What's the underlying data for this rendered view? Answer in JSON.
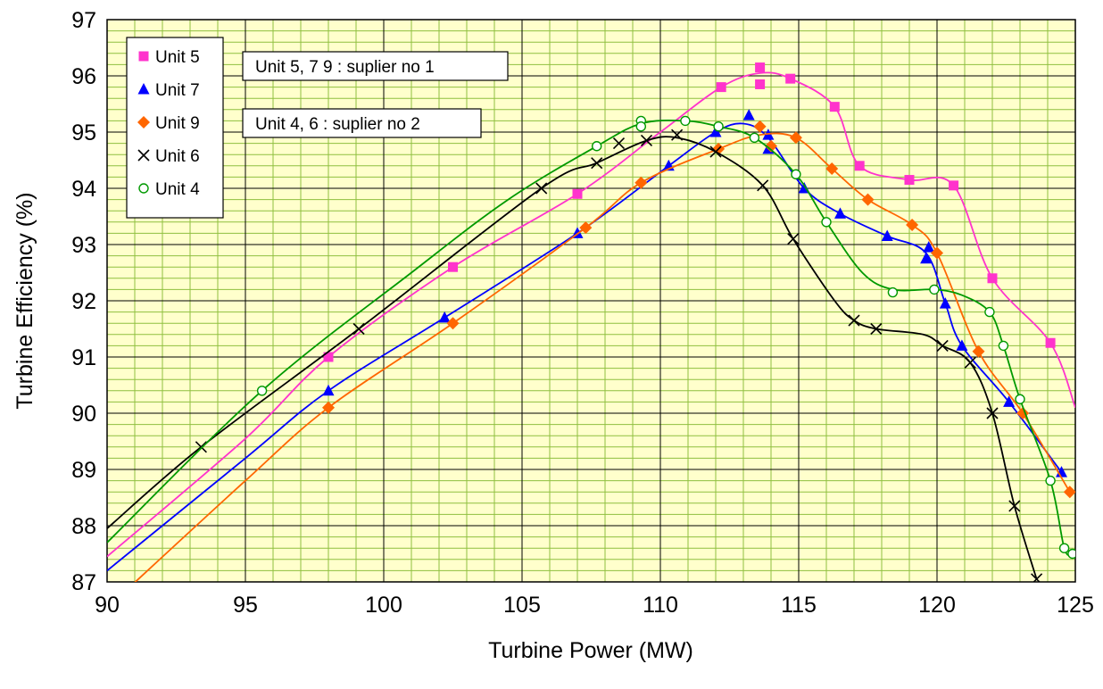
{
  "chart_data": {
    "type": "line",
    "xlabel": "Turbine Power (MW)",
    "ylabel": "Turbine Efficiency (%)",
    "xlim": [
      90,
      125
    ],
    "ylim": [
      87,
      97
    ],
    "xticks": [
      "90",
      "95",
      "100",
      "105",
      "110",
      "115",
      "120",
      "125"
    ],
    "yticks": [
      "87",
      "88",
      "89",
      "90",
      "91",
      "92",
      "93",
      "94",
      "95",
      "96",
      "97"
    ],
    "grid": true,
    "minor_grid": true,
    "plot_background": "#ffffcc",
    "minor_grid_color": "#8fbf3f",
    "major_grid_color": "#000000",
    "legend_position": "top-left",
    "annotations": [
      "Unit 5, 7 9 : suplier no 1",
      "Unit 4, 6 : suplier no 2"
    ],
    "series": [
      {
        "name": "Unit 5",
        "color": "#ff33cc",
        "marker": "square",
        "points": [
          [
            98.0,
            91.0
          ],
          [
            102.5,
            92.6
          ],
          [
            107.0,
            93.9
          ],
          [
            112.2,
            95.8
          ],
          [
            113.6,
            96.15
          ],
          [
            113.6,
            95.85
          ],
          [
            114.7,
            95.95
          ],
          [
            116.3,
            95.45
          ],
          [
            117.2,
            94.4
          ],
          [
            119.0,
            94.15
          ],
          [
            120.6,
            94.05
          ],
          [
            122.0,
            92.4
          ],
          [
            124.1,
            91.25
          ]
        ],
        "curve": [
          [
            90.0,
            87.45
          ],
          [
            95.0,
            89.55
          ],
          [
            98.0,
            91.0
          ],
          [
            102.5,
            92.6
          ],
          [
            107.0,
            93.9
          ],
          [
            110.0,
            95.0
          ],
          [
            112.2,
            95.8
          ],
          [
            113.6,
            96.05
          ],
          [
            114.7,
            95.95
          ],
          [
            116.3,
            95.45
          ],
          [
            117.2,
            94.4
          ],
          [
            119.0,
            94.15
          ],
          [
            120.6,
            94.05
          ],
          [
            122.0,
            92.4
          ],
          [
            124.1,
            91.25
          ],
          [
            125.0,
            90.1
          ]
        ]
      },
      {
        "name": "Unit 7",
        "color": "#0000ff",
        "marker": "triangle",
        "points": [
          [
            98.0,
            90.4
          ],
          [
            102.2,
            91.7
          ],
          [
            107.0,
            93.2
          ],
          [
            110.3,
            94.4
          ],
          [
            112.0,
            95.0
          ],
          [
            113.2,
            95.3
          ],
          [
            113.9,
            94.95
          ],
          [
            113.9,
            94.7
          ],
          [
            115.2,
            94.0
          ],
          [
            116.5,
            93.55
          ],
          [
            118.2,
            93.15
          ],
          [
            119.6,
            92.75
          ],
          [
            119.7,
            92.95
          ],
          [
            120.3,
            91.95
          ],
          [
            120.9,
            91.2
          ],
          [
            122.6,
            90.2
          ],
          [
            124.5,
            88.95
          ]
        ],
        "curve": [
          [
            90.0,
            87.2
          ],
          [
            95.0,
            89.2
          ],
          [
            98.0,
            90.4
          ],
          [
            102.2,
            91.7
          ],
          [
            107.0,
            93.2
          ],
          [
            110.3,
            94.4
          ],
          [
            112.0,
            95.0
          ],
          [
            113.0,
            95.15
          ],
          [
            113.9,
            94.9
          ],
          [
            115.2,
            94.0
          ],
          [
            116.5,
            93.55
          ],
          [
            118.2,
            93.15
          ],
          [
            119.6,
            92.85
          ],
          [
            120.3,
            91.95
          ],
          [
            120.9,
            91.2
          ],
          [
            122.6,
            90.2
          ],
          [
            124.5,
            88.95
          ]
        ]
      },
      {
        "name": "Unit 9",
        "color": "#ff6600",
        "marker": "diamond",
        "points": [
          [
            98.0,
            90.1
          ],
          [
            102.5,
            91.6
          ],
          [
            107.3,
            93.3
          ],
          [
            109.3,
            94.1
          ],
          [
            112.1,
            94.7
          ],
          [
            113.6,
            95.1
          ],
          [
            114.0,
            94.75
          ],
          [
            114.9,
            94.9
          ],
          [
            116.2,
            94.35
          ],
          [
            117.5,
            93.8
          ],
          [
            119.1,
            93.35
          ],
          [
            120.0,
            92.85
          ],
          [
            121.5,
            91.1
          ],
          [
            123.1,
            90.0
          ],
          [
            124.8,
            88.6
          ]
        ],
        "curve": [
          [
            90.8,
            86.9
          ],
          [
            95.0,
            88.8
          ],
          [
            98.0,
            90.1
          ],
          [
            102.5,
            91.6
          ],
          [
            107.3,
            93.3
          ],
          [
            109.3,
            94.1
          ],
          [
            112.1,
            94.7
          ],
          [
            113.6,
            94.95
          ],
          [
            114.9,
            94.9
          ],
          [
            116.2,
            94.35
          ],
          [
            117.5,
            93.8
          ],
          [
            119.1,
            93.35
          ],
          [
            120.0,
            92.85
          ],
          [
            121.5,
            91.1
          ],
          [
            123.1,
            90.0
          ],
          [
            124.8,
            88.6
          ]
        ]
      },
      {
        "name": "Unit 6",
        "color": "#000000",
        "marker": "x",
        "points": [
          [
            93.4,
            89.4
          ],
          [
            99.1,
            91.5
          ],
          [
            105.7,
            94.0
          ],
          [
            107.7,
            94.45
          ],
          [
            108.5,
            94.8
          ],
          [
            109.5,
            94.85
          ],
          [
            110.6,
            94.95
          ],
          [
            112.0,
            94.65
          ],
          [
            113.7,
            94.05
          ],
          [
            114.8,
            93.1
          ],
          [
            117.0,
            91.65
          ],
          [
            117.8,
            91.5
          ],
          [
            120.2,
            91.2
          ],
          [
            121.2,
            90.9
          ],
          [
            122.0,
            90.0
          ],
          [
            122.8,
            88.35
          ],
          [
            123.6,
            87.05
          ]
        ],
        "curve": [
          [
            90.0,
            87.95
          ],
          [
            93.4,
            89.4
          ],
          [
            99.1,
            91.5
          ],
          [
            105.7,
            94.0
          ],
          [
            107.7,
            94.45
          ],
          [
            109.5,
            94.85
          ],
          [
            110.6,
            94.9
          ],
          [
            112.0,
            94.65
          ],
          [
            113.7,
            94.05
          ],
          [
            114.8,
            93.1
          ],
          [
            116.3,
            92.0
          ],
          [
            117.0,
            91.65
          ],
          [
            117.8,
            91.5
          ],
          [
            119.5,
            91.4
          ],
          [
            120.2,
            91.2
          ],
          [
            121.2,
            90.9
          ],
          [
            122.0,
            90.0
          ],
          [
            122.8,
            88.35
          ],
          [
            123.6,
            87.05
          ]
        ]
      },
      {
        "name": "Unit 4",
        "color": "#009900",
        "marker": "circle",
        "points": [
          [
            95.6,
            90.4
          ],
          [
            107.7,
            94.75
          ],
          [
            109.3,
            95.2
          ],
          [
            109.3,
            95.1
          ],
          [
            110.9,
            95.2
          ],
          [
            112.1,
            95.1
          ],
          [
            113.4,
            94.9
          ],
          [
            114.9,
            94.25
          ],
          [
            116.0,
            93.4
          ],
          [
            118.4,
            92.15
          ],
          [
            119.9,
            92.2
          ],
          [
            121.9,
            91.8
          ],
          [
            122.4,
            91.2
          ],
          [
            123.0,
            90.25
          ],
          [
            124.1,
            88.8
          ],
          [
            124.6,
            87.6
          ],
          [
            124.9,
            87.5
          ]
        ],
        "curve": [
          [
            90.0,
            87.7
          ],
          [
            95.6,
            90.4
          ],
          [
            101.0,
            92.5
          ],
          [
            104.5,
            93.8
          ],
          [
            107.7,
            94.75
          ],
          [
            109.3,
            95.15
          ],
          [
            110.9,
            95.2
          ],
          [
            112.1,
            95.1
          ],
          [
            113.4,
            94.9
          ],
          [
            114.9,
            94.25
          ],
          [
            116.0,
            93.4
          ],
          [
            117.3,
            92.5
          ],
          [
            118.4,
            92.2
          ],
          [
            119.9,
            92.2
          ],
          [
            120.9,
            92.1
          ],
          [
            121.9,
            91.8
          ],
          [
            122.4,
            91.2
          ],
          [
            123.0,
            90.25
          ],
          [
            124.1,
            88.8
          ],
          [
            124.6,
            87.6
          ],
          [
            124.9,
            87.5
          ]
        ]
      }
    ]
  }
}
